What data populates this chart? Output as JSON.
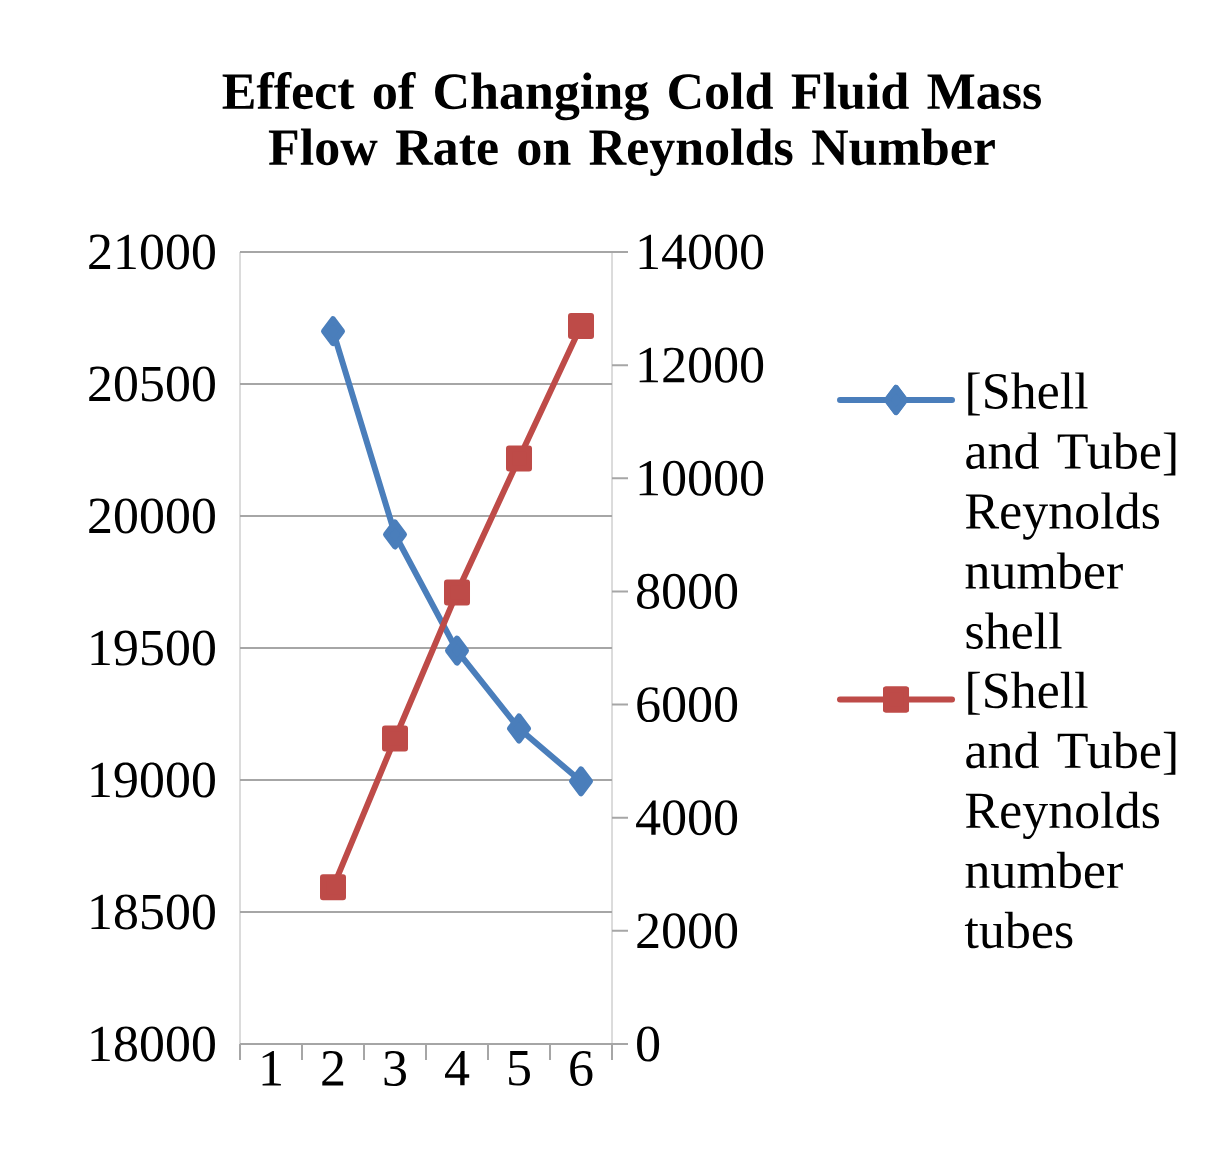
{
  "chart_data": {
    "type": "line",
    "title": "Effect of Changing Cold Fluid Mass Flow Rate on Reynolds Number",
    "categories": [
      "1",
      "2",
      "3",
      "4",
      "5",
      "6"
    ],
    "series": [
      {
        "name": "[Shell and Tube] Reynolds number shell",
        "color": "#4a7ebb",
        "marker": "diamond",
        "values": [
          null,
          20700,
          19930,
          19490,
          19195,
          18995
        ]
      },
      {
        "name": "[Shell and Tube] Reynolds number tubes",
        "color": "#be4b48",
        "marker": "square",
        "axis": "y2",
        "values": [
          null,
          2770,
          5400,
          7980,
          10350,
          12690
        ]
      }
    ],
    "ylim": [
      18000,
      21000
    ],
    "yticks": [
      18000,
      18500,
      19000,
      19500,
      20000,
      20500,
      21000
    ],
    "y2lim": [
      0,
      14000
    ],
    "y2ticks": [
      0,
      2000,
      4000,
      6000,
      8000,
      10000,
      12000,
      14000
    ],
    "grid": "y",
    "legend": "right",
    "line_style": "solid"
  }
}
